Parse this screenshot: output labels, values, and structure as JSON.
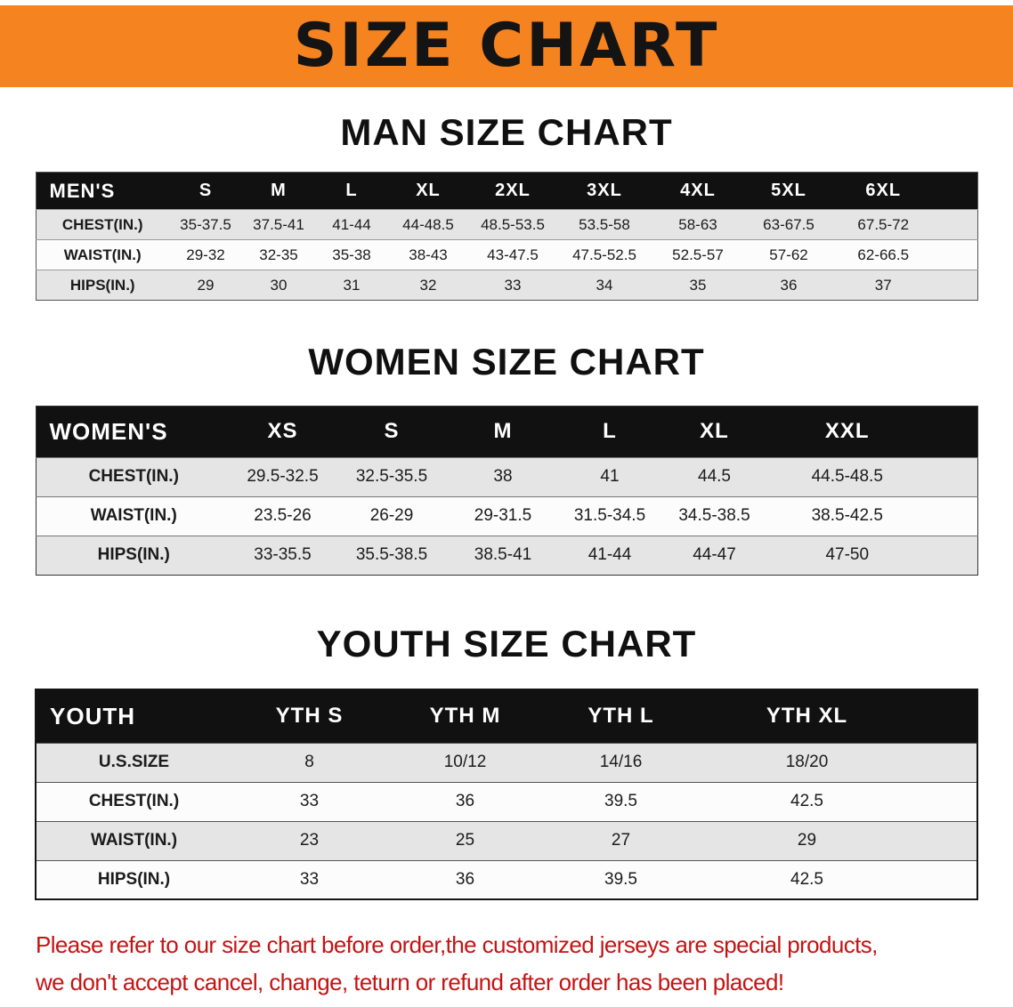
{
  "banner": {
    "title": "SIZE CHART"
  },
  "colors": {
    "banner_bg": "#f5831f",
    "table_header_bg": "#111111",
    "row_stripe": "#e5e5e5",
    "footer_red": "#c41414"
  },
  "sections": {
    "men": {
      "heading": "MAN SIZE CHART"
    },
    "women": {
      "heading": "WOMEN SIZE CHART"
    },
    "youth": {
      "heading": "YOUTH SIZE CHART"
    }
  },
  "tables": {
    "men": {
      "header": [
        "MEN'S",
        "S",
        "M",
        "L",
        "XL",
        "2XL",
        "3XL",
        "4XL",
        "5XL",
        "6XL"
      ],
      "rows": [
        [
          "CHEST(IN.)",
          "35-37.5",
          "37.5-41",
          "41-44",
          "44-48.5",
          "48.5-53.5",
          "53.5-58",
          "58-63",
          "63-67.5",
          "67.5-72"
        ],
        [
          "WAIST(IN.)",
          "29-32",
          "32-35",
          "35-38",
          "38-43",
          "43-47.5",
          "47.5-52.5",
          "52.5-57",
          "57-62",
          "62-66.5"
        ],
        [
          "HIPS(IN.)",
          "29",
          "30",
          "31",
          "32",
          "33",
          "34",
          "35",
          "36",
          "37"
        ]
      ]
    },
    "women": {
      "header": [
        "WOMEN'S",
        "XS",
        "S",
        "M",
        "L",
        "XL",
        "XXL"
      ],
      "rows": [
        [
          "CHEST(IN.)",
          "29.5-32.5",
          "32.5-35.5",
          "38",
          "41",
          "44.5",
          "44.5-48.5"
        ],
        [
          "WAIST(IN.)",
          "23.5-26",
          "26-29",
          "29-31.5",
          "31.5-34.5",
          "34.5-38.5",
          "38.5-42.5"
        ],
        [
          "HIPS(IN.)",
          "33-35.5",
          "35.5-38.5",
          "38.5-41",
          "41-44",
          "44-47",
          "47-50"
        ]
      ]
    },
    "youth": {
      "header": [
        "YOUTH",
        "YTH S",
        "YTH M",
        "YTH L",
        "YTH XL"
      ],
      "rows": [
        [
          "U.S.SIZE",
          "8",
          "10/12",
          "14/16",
          "18/20"
        ],
        [
          "CHEST(IN.)",
          "33",
          "36",
          "39.5",
          "42.5"
        ],
        [
          "WAIST(IN.)",
          "23",
          "25",
          "27",
          "29"
        ],
        [
          "HIPS(IN.)",
          "33",
          "36",
          "39.5",
          "42.5"
        ]
      ]
    }
  },
  "footer": {
    "line1": "Please refer to our size chart before order,the customized jerseys are special products,",
    "line2": "we don't accept cancel, change, teturn or refund after order has been placed!"
  }
}
